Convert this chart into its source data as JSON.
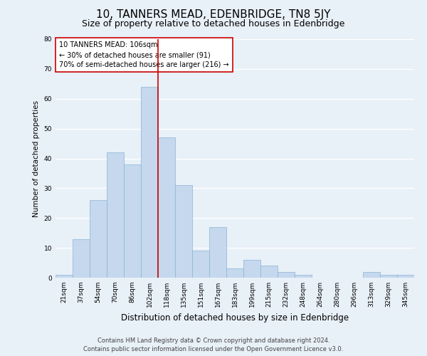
{
  "title": "10, TANNERS MEAD, EDENBRIDGE, TN8 5JY",
  "subtitle": "Size of property relative to detached houses in Edenbridge",
  "xlabel": "Distribution of detached houses by size in Edenbridge",
  "ylabel": "Number of detached properties",
  "categories": [
    "21sqm",
    "37sqm",
    "54sqm",
    "70sqm",
    "86sqm",
    "102sqm",
    "118sqm",
    "135sqm",
    "151sqm",
    "167sqm",
    "183sqm",
    "199sqm",
    "215sqm",
    "232sqm",
    "248sqm",
    "264sqm",
    "280sqm",
    "296sqm",
    "313sqm",
    "329sqm",
    "345sqm"
  ],
  "values": [
    1,
    13,
    26,
    42,
    38,
    64,
    47,
    31,
    9,
    17,
    3,
    6,
    4,
    2,
    1,
    0,
    0,
    0,
    2,
    1,
    1
  ],
  "bar_color": "#c5d8ed",
  "bar_edge_color": "#8ab4d4",
  "vline_x": 5.5,
  "vline_color": "#cc0000",
  "annotation_box_text": "10 TANNERS MEAD: 106sqm\n← 30% of detached houses are smaller (91)\n70% of semi-detached houses are larger (216) →",
  "annotation_box_color": "#cc0000",
  "annotation_box_fill": "#ffffff",
  "ylim": [
    0,
    80
  ],
  "yticks": [
    0,
    10,
    20,
    30,
    40,
    50,
    60,
    70,
    80
  ],
  "background_color": "#e8f0f8",
  "grid_color": "#ffffff",
  "footer_line1": "Contains HM Land Registry data © Crown copyright and database right 2024.",
  "footer_line2": "Contains public sector information licensed under the Open Government Licence v3.0.",
  "title_fontsize": 11,
  "subtitle_fontsize": 9,
  "xlabel_fontsize": 8.5,
  "ylabel_fontsize": 7.5,
  "tick_fontsize": 6.5,
  "annotation_fontsize": 7,
  "footer_fontsize": 6
}
